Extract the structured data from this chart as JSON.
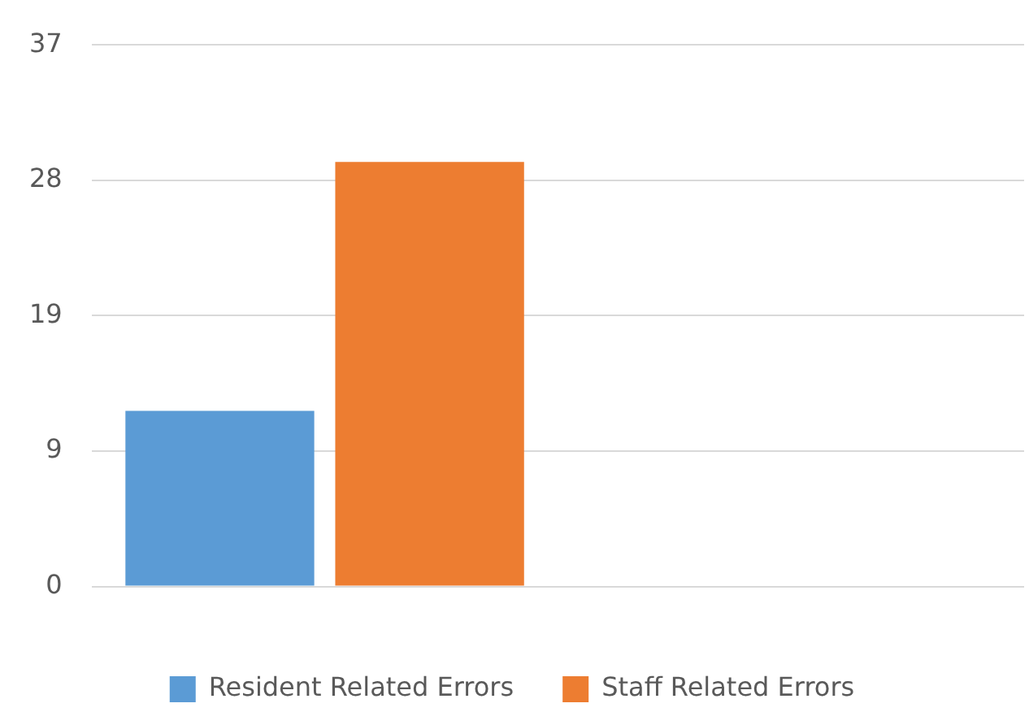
{
  "chart_data": {
    "type": "bar",
    "categories": [
      null,
      null
    ],
    "series": [
      {
        "name": "Resident Related Errors",
        "color": "#5b9bd5",
        "values": [
          12,
          null
        ]
      },
      {
        "name": "Staff Related Errors",
        "color": "#ed7d31",
        "values": [
          29,
          null
        ]
      }
    ],
    "ylim": [
      0,
      37
    ],
    "yticks": [
      0,
      {
        "value": 9.25,
        "label": "9"
      },
      {
        "value": 18.5,
        "label": "19"
      },
      {
        "value": 27.75,
        "label": "28"
      },
      37
    ],
    "grid": "y",
    "legend": "bottom"
  }
}
